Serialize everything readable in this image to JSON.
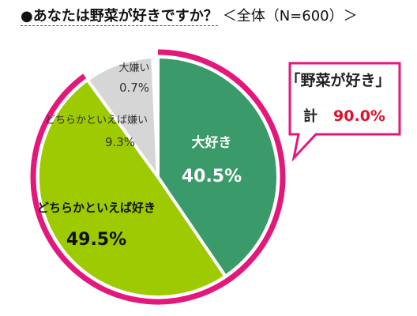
{
  "title": "●あなたは野菜が好きですか？",
  "subtitle": "＜全体（N=600）＞",
  "callout": {
    "heading": "「野菜が好き」",
    "total_label": "計",
    "total_value": "90.0%"
  },
  "colors": {
    "daisuki": "#3a9a6a",
    "dochiraka_suki": "#9dca00",
    "dochiraka_kirai": "#d6d6d6",
    "daikirai": "#ffffff",
    "ring": "#e4177a",
    "callout_value": "#e0102a"
  },
  "chart_data": {
    "type": "pie",
    "title": "●あなたは野菜が好きですか？",
    "categories": [
      "大好き",
      "どちらかといえば好き",
      "どちらかといえば嫌い",
      "大嫌い"
    ],
    "values": [
      40.5,
      49.5,
      9.3,
      0.7
    ],
    "labels": [
      "40.5%",
      "49.5%",
      "9.3%",
      "0.7%"
    ],
    "start": "12 o'clock, clockwise",
    "highlight_ring_categories": [
      "大好き",
      "どちらかといえば好き"
    ]
  }
}
